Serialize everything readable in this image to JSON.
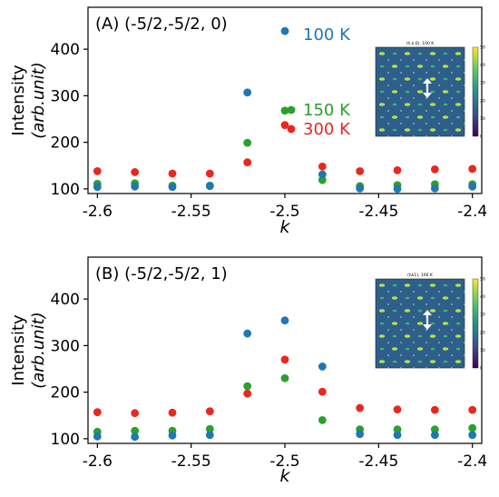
{
  "chart_data": [
    {
      "type": "scatter",
      "panel_label": "(A) (-5/2,-5/2, 0)",
      "xlabel": "k",
      "ylabel_line1": "Intensity",
      "ylabel_line2": "(arb.unit)",
      "xlim": [
        -2.605,
        -2.395
      ],
      "ylim": [
        90,
        490
      ],
      "xticks": [
        {
          "value": -2.6,
          "label": "-2.6"
        },
        {
          "value": -2.55,
          "label": "-2.55"
        },
        {
          "value": -2.5,
          "label": "-2.5"
        },
        {
          "value": -2.45,
          "label": "-2.45"
        },
        {
          "value": -2.4,
          "label": "-2.4"
        }
      ],
      "yticks": [
        {
          "value": 100,
          "label": "100"
        },
        {
          "value": 200,
          "label": "200"
        },
        {
          "value": 300,
          "label": "300"
        },
        {
          "value": 400,
          "label": "400"
        }
      ],
      "x": [
        -2.6,
        -2.58,
        -2.56,
        -2.54,
        -2.52,
        -2.5,
        -2.48,
        -2.46,
        -2.44,
        -2.42,
        -2.4
      ],
      "series": [
        {
          "name": "100 K",
          "color": "#1f77b4",
          "values": [
            104,
            105,
            104,
            106,
            307,
            439,
            131,
            101,
            100,
            101,
            105
          ]
        },
        {
          "name": "150 K",
          "color": "#2ca02c",
          "values": [
            111,
            112,
            107,
            107,
            199,
            268,
            119,
            106,
            108,
            110,
            110
          ]
        },
        {
          "name": "300 K",
          "color": "#e8281f",
          "values": [
            138,
            136,
            133,
            133,
            157,
            237,
            148,
            138,
            140,
            142,
            143
          ]
        }
      ],
      "legend": [
        {
          "text": "100 K",
          "color": "#1f77b4",
          "marker": "none"
        },
        {
          "text": "150 K",
          "color": "#2ca02c",
          "marker": "circle"
        },
        {
          "text": "300 K",
          "color": "#e8281f",
          "marker": "circle"
        }
      ],
      "inset": {
        "title": "(h,k,0), 100 K",
        "colorbar_ticks": [
          "0",
          "10",
          "20",
          "30",
          "40",
          "50"
        ],
        "colorbar_colors": [
          "#440154",
          "#3b528b",
          "#21918c",
          "#5ec962",
          "#fde725"
        ]
      }
    },
    {
      "type": "scatter",
      "panel_label": "(B) (-5/2,-5/2, 1)",
      "xlabel": "k",
      "ylabel_line1": "Intensity",
      "ylabel_line2": "(arb.unit)",
      "xlim": [
        -2.605,
        -2.395
      ],
      "ylim": [
        90,
        490
      ],
      "xticks": [
        {
          "value": -2.6,
          "label": "-2.6"
        },
        {
          "value": -2.55,
          "label": "-2.55"
        },
        {
          "value": -2.5,
          "label": "-2.5"
        },
        {
          "value": -2.45,
          "label": "-2.45"
        },
        {
          "value": -2.4,
          "label": "-2.4"
        }
      ],
      "yticks": [
        {
          "value": 100,
          "label": "100"
        },
        {
          "value": 200,
          "label": "200"
        },
        {
          "value": 300,
          "label": "300"
        },
        {
          "value": 400,
          "label": "400"
        }
      ],
      "x": [
        -2.6,
        -2.58,
        -2.56,
        -2.54,
        -2.52,
        -2.5,
        -2.48,
        -2.46,
        -2.44,
        -2.42,
        -2.4
      ],
      "series": [
        {
          "name": "100 K",
          "color": "#1f77b4",
          "values": [
            105,
            104,
            107,
            108,
            326,
            354,
            255,
            110,
            108,
            108,
            108
          ]
        },
        {
          "name": "150 K",
          "color": "#2ca02c",
          "values": [
            115,
            117,
            117,
            121,
            213,
            230,
            140,
            120,
            120,
            120,
            123
          ]
        },
        {
          "name": "300 K",
          "color": "#e8281f",
          "values": [
            157,
            155,
            156,
            159,
            197,
            270,
            201,
            166,
            163,
            162,
            162
          ]
        }
      ],
      "legend": [],
      "inset": {
        "title": "(hk1), 100 K",
        "colorbar_ticks": [
          "0",
          "10",
          "20",
          "30",
          "40",
          "50"
        ],
        "colorbar_colors": [
          "#440154",
          "#3b528b",
          "#21918c",
          "#5ec962",
          "#fde725"
        ]
      }
    }
  ]
}
